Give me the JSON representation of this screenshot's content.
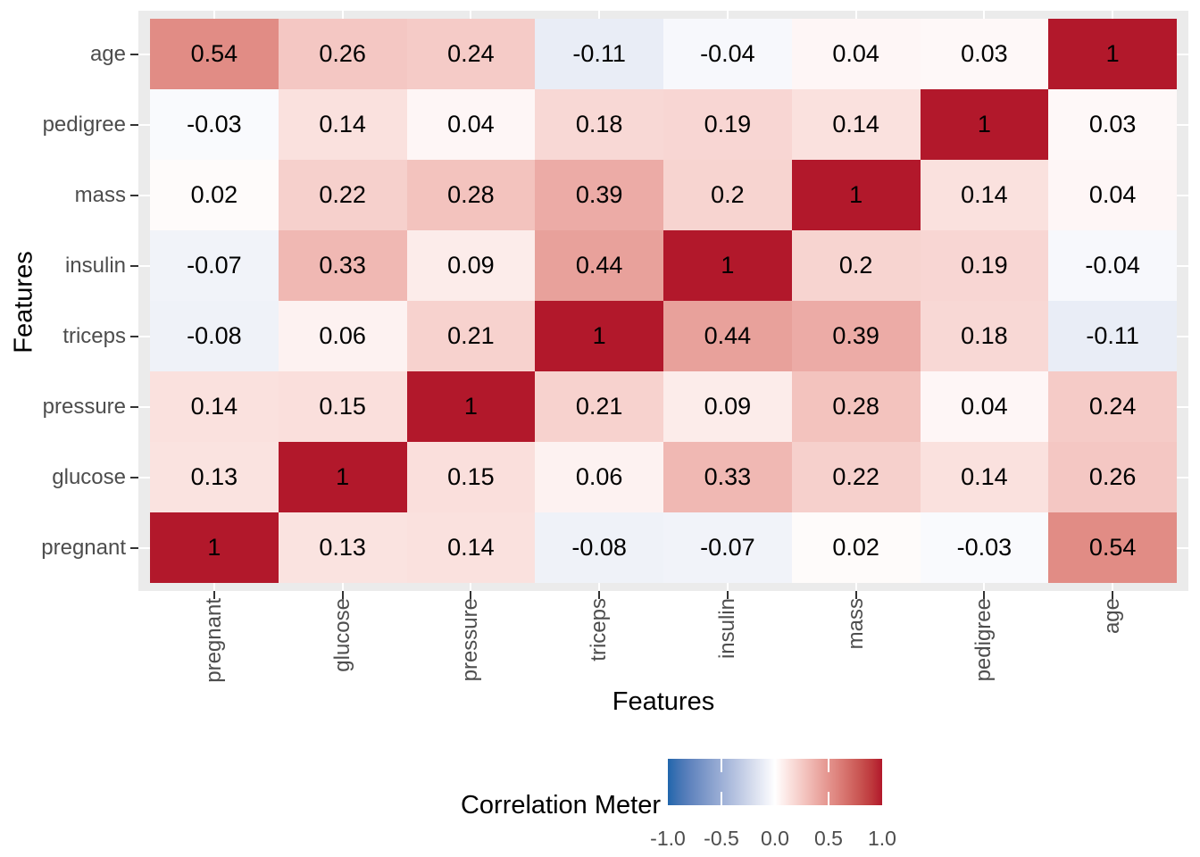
{
  "y_axis": {
    "title": "Features"
  },
  "x_axis": {
    "title": "Features"
  },
  "legend": {
    "title": "Correlation Meter",
    "tick_labels": [
      "-1.0",
      "-0.5",
      "0.0",
      "0.5",
      "1.0"
    ]
  },
  "colors": {
    "panel_background": "#EBEBEB",
    "gridline": "#FFFFFF",
    "axis_text": "#4D4D4D",
    "axis_title": "#000000",
    "tick_mark": "#333333",
    "cell_text": "#000000",
    "scale_low": "#2166AC",
    "scale_mid": "#FFFFFF",
    "scale_high": "#B2182B"
  },
  "chart_data": {
    "type": "heatmap",
    "title": "",
    "xlabel": "Features",
    "ylabel": "Features",
    "x_categories": [
      "pregnant",
      "glucose",
      "pressure",
      "triceps",
      "insulin",
      "mass",
      "pedigree",
      "age"
    ],
    "y_categories_top_to_bottom": [
      "age",
      "pedigree",
      "mass",
      "insulin",
      "triceps",
      "pressure",
      "glucose",
      "pregnant"
    ],
    "rows_top_to_bottom": [
      {
        "label": "age",
        "values": [
          0.54,
          0.26,
          0.24,
          -0.11,
          -0.04,
          0.04,
          0.03,
          1
        ]
      },
      {
        "label": "pedigree",
        "values": [
          -0.03,
          0.14,
          0.04,
          0.18,
          0.19,
          0.14,
          1,
          0.03
        ]
      },
      {
        "label": "mass",
        "values": [
          0.02,
          0.22,
          0.28,
          0.39,
          0.2,
          1,
          0.14,
          0.04
        ]
      },
      {
        "label": "insulin",
        "values": [
          -0.07,
          0.33,
          0.09,
          0.44,
          1,
          0.2,
          0.19,
          -0.04
        ]
      },
      {
        "label": "triceps",
        "values": [
          -0.08,
          0.06,
          0.21,
          1,
          0.44,
          0.39,
          0.18,
          -0.11
        ]
      },
      {
        "label": "pressure",
        "values": [
          0.14,
          0.15,
          1,
          0.21,
          0.09,
          0.28,
          0.04,
          0.24
        ]
      },
      {
        "label": "glucose",
        "values": [
          0.13,
          1,
          0.15,
          0.06,
          0.33,
          0.22,
          0.14,
          0.26
        ]
      },
      {
        "label": "pregnant",
        "values": [
          1,
          0.13,
          0.14,
          -0.08,
          -0.07,
          0.02,
          -0.03,
          0.54
        ]
      }
    ],
    "color_domain": [
      -1,
      1
    ],
    "legend_position": "bottom",
    "grid": "major-white-on-grey"
  }
}
